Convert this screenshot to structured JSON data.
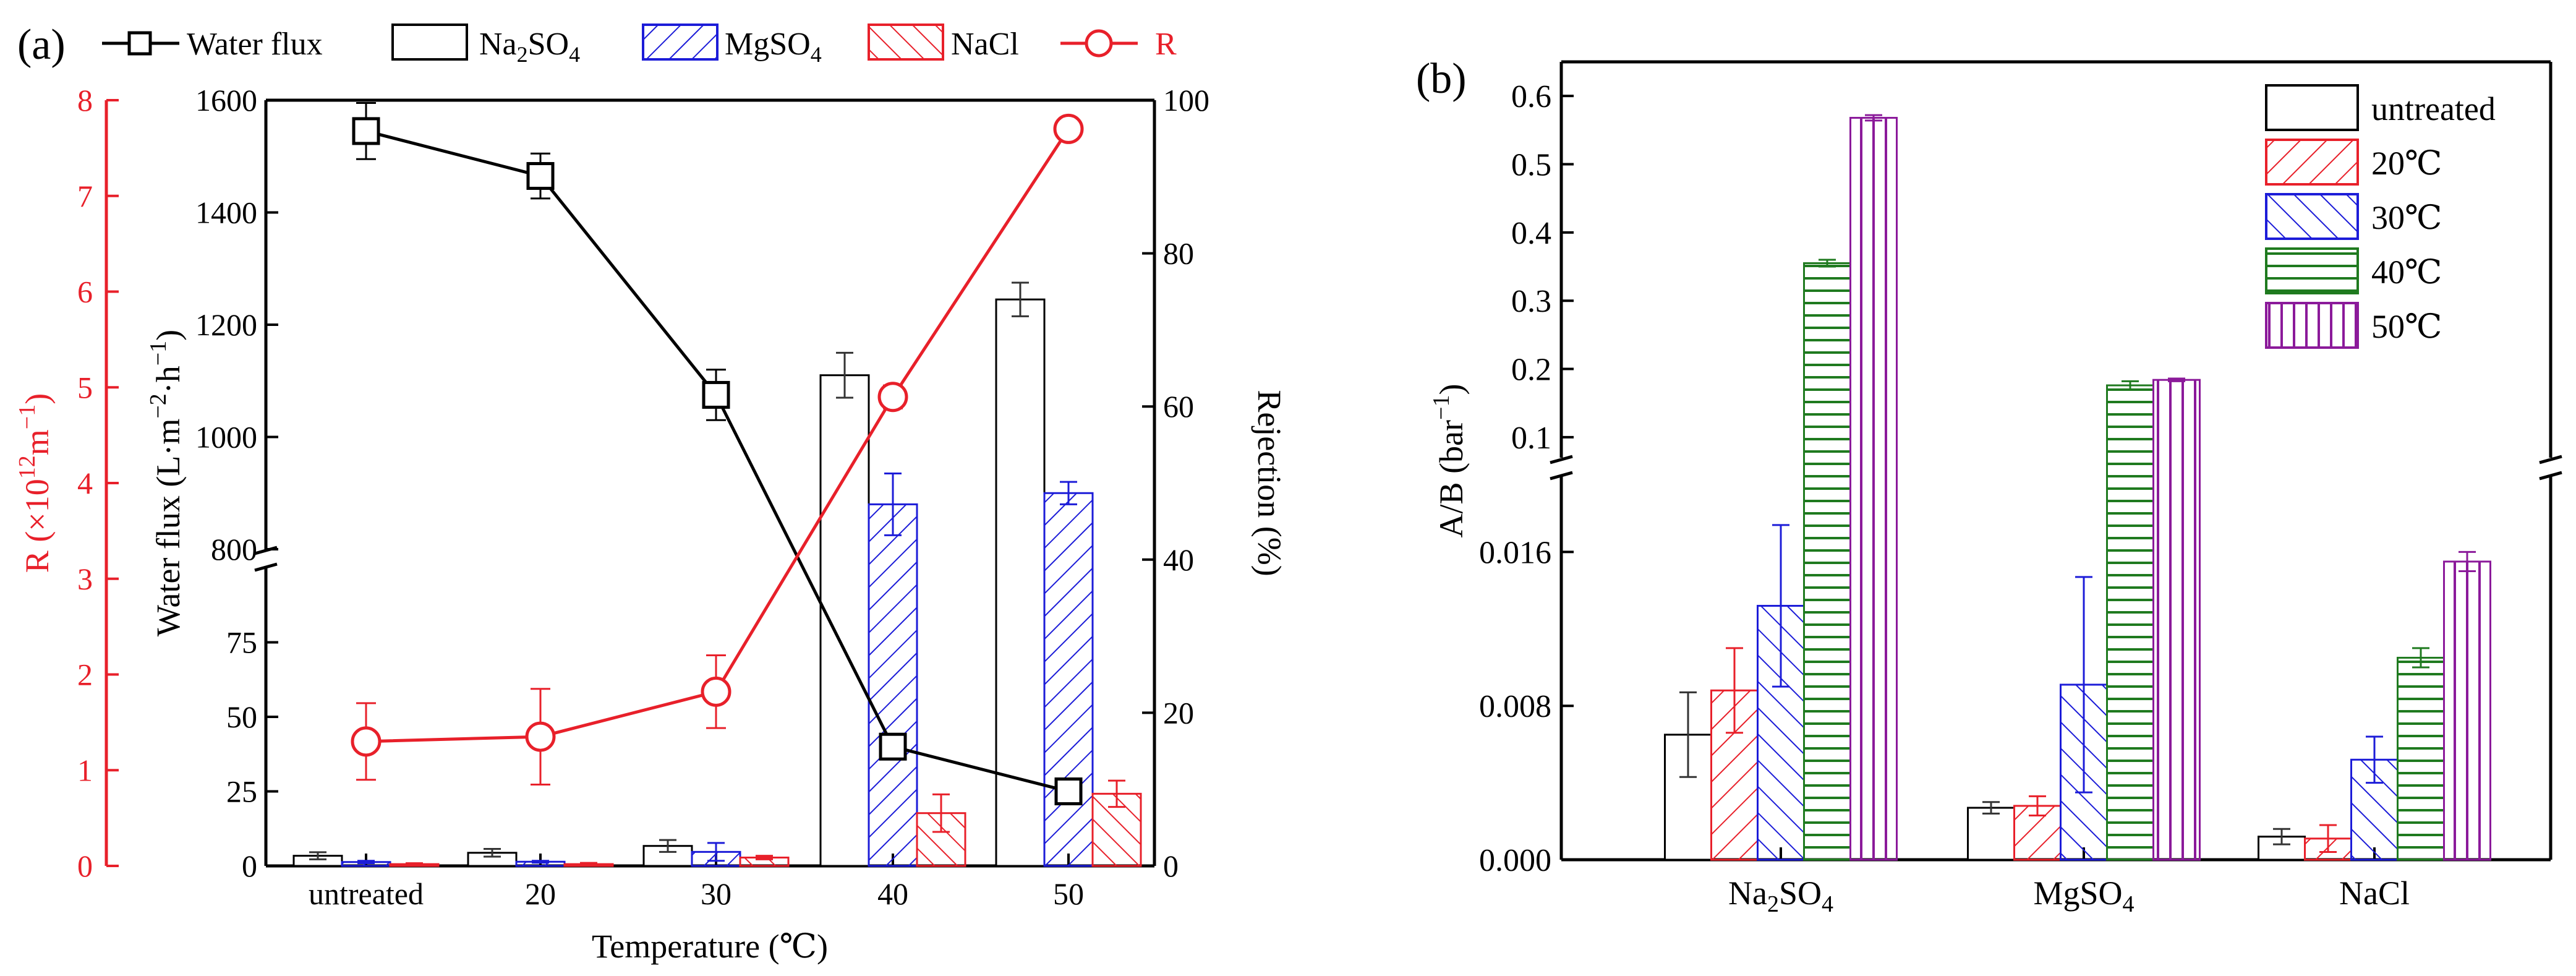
{
  "panels": {
    "a": {
      "label": "(a)"
    },
    "b": {
      "label": "(b)"
    }
  },
  "colors": {
    "black": "#000000",
    "red": "#e8202a",
    "blue": "#1c1cd8",
    "green": "#1f7a1f",
    "purple": "#8b1a9a"
  },
  "legend_a": {
    "water_flux": "Water flux",
    "na2so4_main": "Na",
    "na2so4_sub": "2",
    "na2so4_tail": "SO",
    "na2so4_sub2": "4",
    "mgso4_main": "MgSO",
    "mgso4_sub": "4",
    "nacl": "NaCl",
    "r": "R"
  },
  "axes_a": {
    "left_red_label_main": "R (×10",
    "left_red_label_sup": "12",
    "left_red_label_unit": "m",
    "left_red_label_sup2": "−1",
    "left_red_label_end": ")",
    "left_black_label_main": "Water flux (L·m",
    "left_black_label_sup": "−2",
    "left_black_label_mid": "·h",
    "left_black_label_sup2": "−1",
    "left_black_label_end": ")",
    "right_label": "Rejection (%)",
    "x_label": "Temperature (℃)"
  },
  "axes_b": {
    "y_label_main": "A/B (bar",
    "y_label_sup": "−1",
    "y_label_end": ")"
  },
  "legend_b": {
    "untreated": "untreated",
    "t20": "20℃",
    "t30": "30℃",
    "t40": "40℃",
    "t50": "50℃"
  },
  "chart_data": [
    {
      "id": "a",
      "type": "bar",
      "title": "",
      "xlabel": "Temperature (℃)",
      "categories": [
        "untreated",
        "20",
        "30",
        "40",
        "50"
      ],
      "flux_axis": {
        "lower_range": [
          0,
          100
        ],
        "lower_ticks": [
          "0",
          "25",
          "50",
          "75"
        ],
        "upper_range": [
          800,
          1600
        ],
        "upper_ticks": [
          "800",
          "1000",
          "1200",
          "1400",
          "1600"
        ]
      },
      "r_axis": {
        "range": [
          0,
          8
        ],
        "ticks": [
          "0",
          "1",
          "2",
          "3",
          "4",
          "5",
          "6",
          "7",
          "8"
        ]
      },
      "rejection_axis": {
        "range": [
          0,
          100
        ],
        "ticks": [
          "0",
          "20",
          "40",
          "60",
          "80",
          "100"
        ]
      },
      "water_flux": {
        "values": [
          1545,
          1465,
          1075,
          40,
          25
        ],
        "errors": [
          50,
          40,
          45,
          0,
          0
        ]
      },
      "R": {
        "values": [
          1.3,
          1.35,
          1.82,
          4.9,
          7.7
        ],
        "errors": [
          0.4,
          0.5,
          0.38,
          0.12,
          0.06
        ]
      },
      "rejection": {
        "series": [
          {
            "name": "Na2SO4",
            "values": [
              3.4,
              4.4,
              6.7,
              1110,
              1245
            ],
            "errors": [
              1.2,
              1.3,
              2.0,
              40,
              30
            ]
          },
          {
            "name": "MgSO4",
            "values": [
              1.3,
              1.4,
              4.7,
              880,
              900
            ],
            "errors": [
              0.4,
              0.3,
              3.0,
              55,
              20
            ]
          },
          {
            "name": "NaCl",
            "values": [
              0.6,
              0.6,
              2.8,
              17.7,
              24.2
            ],
            "errors": [
              0.3,
              0.4,
              0.6,
              6.3,
              4.4
            ]
          }
        ]
      }
    },
    {
      "id": "b",
      "type": "bar",
      "title": "",
      "ylabel": "A/B (bar⁻¹)",
      "categories": [
        "Na2SO4",
        "MgSO4",
        "NaCl"
      ],
      "y_axis": {
        "lower_range": [
          0,
          0.02
        ],
        "lower_ticks": [
          "0.000",
          "0.008",
          "0.016"
        ],
        "upper_range": [
          0.07,
          0.65
        ],
        "upper_ticks": [
          "0.1",
          "0.2",
          "0.3",
          "0.4",
          "0.5",
          "0.6"
        ]
      },
      "series": [
        {
          "name": "untreated",
          "values": [
            0.0065,
            0.0027,
            0.0012
          ],
          "errors": [
            0.0022,
            0.0003,
            0.0004
          ]
        },
        {
          "name": "20℃",
          "values": [
            0.0088,
            0.0028,
            0.0011
          ],
          "errors": [
            0.0022,
            0.0005,
            0.0007
          ]
        },
        {
          "name": "30℃",
          "values": [
            0.0132,
            0.0091,
            0.0052
          ],
          "errors": [
            0.0042,
            0.0056,
            0.0012
          ]
        },
        {
          "name": "40℃",
          "values": [
            0.355,
            0.176,
            0.0105
          ],
          "errors": [
            0.005,
            0.006,
            0.0005
          ]
        },
        {
          "name": "50℃",
          "values": [
            0.568,
            0.184,
            0.0155
          ],
          "errors": [
            0.004,
            0.002,
            0.0005
          ]
        }
      ]
    }
  ]
}
